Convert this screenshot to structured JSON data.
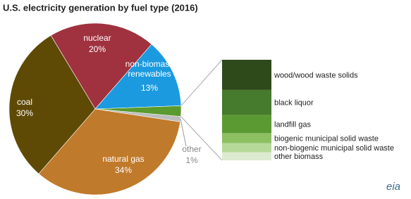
{
  "chart_data": [
    {
      "type": "pie",
      "title": "U.S. electricity generation by fuel type (2016)",
      "categories": [
        "nuclear",
        "non-biomass renewables",
        null,
        "other",
        "natural gas",
        "coal"
      ],
      "values": [
        20,
        13,
        2,
        1,
        34,
        30
      ],
      "value_labels": [
        "20%",
        "13%",
        null,
        "1%",
        "34%",
        "30%"
      ],
      "colors": [
        "#a0323f",
        "#1b9ae0",
        "#5a9a2e",
        "#bdbdbd",
        "#c07a2b",
        "#5f4a05"
      ]
    },
    {
      "type": "bar",
      "stacked": true,
      "categories": [
        null
      ],
      "series": [
        {
          "name": "wood/wood waste solids",
          "color": "#2e4a1b",
          "values": [
            30
          ]
        },
        {
          "name": "black liquor",
          "color": "#467a2c",
          "values": [
            25
          ]
        },
        {
          "name": "landfill gas",
          "color": "#5b9a33",
          "values": [
            18
          ]
        },
        {
          "name": "biogenic municipal solid waste",
          "color": "#8cc063",
          "values": [
            10
          ]
        },
        {
          "name": "non-biogenic municipal solid waste",
          "color": "#b6d99a",
          "values": [
            9
          ]
        },
        {
          "name": "other biomass",
          "color": "#dcebd0",
          "values": [
            8
          ]
        }
      ]
    }
  ],
  "logo": "eia"
}
